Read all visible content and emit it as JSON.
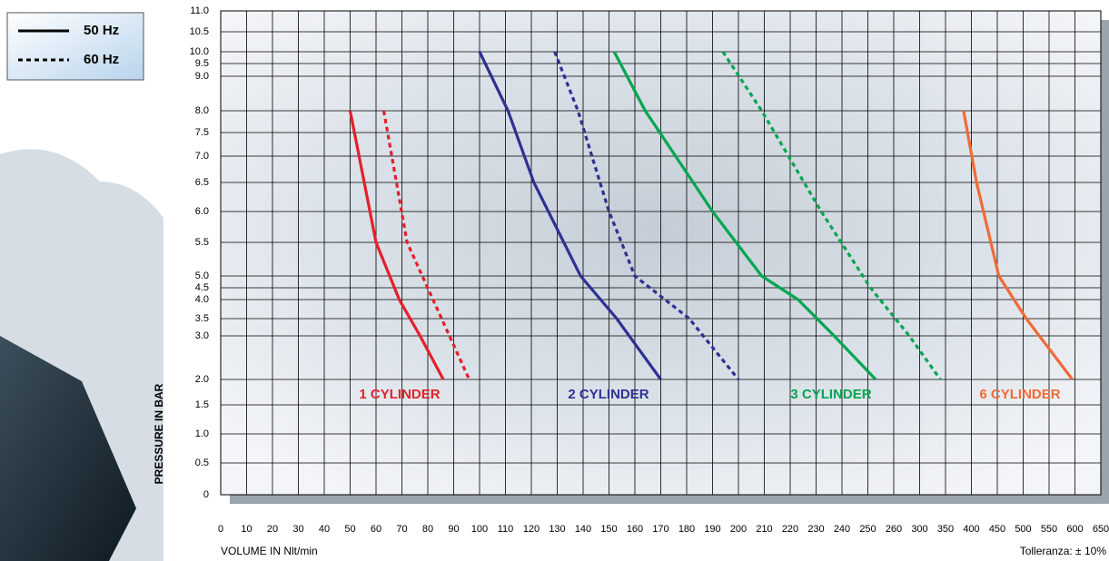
{
  "chart_data": {
    "type": "line",
    "ylabel": "PRESSURE IN BAR",
    "xlabel": "VOLUME IN Nlt/min",
    "note": "Tolleranza: ± 10%",
    "legend": [
      {
        "label": "50 Hz",
        "dash": "solid"
      },
      {
        "label": "60 Hz",
        "dash": "dashed"
      }
    ],
    "xticks": [
      0,
      10,
      20,
      30,
      40,
      50,
      60,
      70,
      80,
      90,
      100,
      110,
      120,
      130,
      140,
      150,
      160,
      170,
      180,
      190,
      200,
      210,
      220,
      230,
      240,
      250,
      260,
      300,
      350,
      400,
      450,
      500,
      550,
      600,
      650
    ],
    "xlim": [
      0,
      650
    ],
    "yticks": [
      0,
      0.5,
      {
        "value": 1,
        "label": "1.0"
      },
      1.5,
      {
        "value": 2,
        "label": "2.0"
      },
      {
        "value": 3,
        "label": "3.0"
      },
      3.5,
      {
        "value": 4,
        "label": "4.0"
      },
      4.5,
      {
        "value": 5,
        "label": "5.0"
      },
      5.5,
      {
        "value": 6,
        "label": "6.0"
      },
      6.5,
      {
        "value": 7,
        "label": "7.0"
      },
      7.5,
      {
        "value": 8,
        "label": "8.0"
      },
      {
        "value": 9,
        "label": "9.0"
      },
      9.5,
      {
        "value": 10,
        "label": "10.0"
      },
      10.5,
      {
        "value": 11,
        "label": "11.0"
      }
    ],
    "ylim": [
      0,
      11
    ],
    "grid": true,
    "curves": [
      {
        "name": "1 CYLINDER",
        "color": "#e4202a",
        "lines": [
          {
            "x": [
              50,
              60,
              69,
              77,
              86
            ],
            "values": [
              8,
              5.5,
              4,
              3,
              2
            ]
          },
          {
            "x": [
              63,
              72,
              82,
              96
            ],
            "values": [
              8,
              5.5,
              4,
              2
            ]
          }
        ]
      },
      {
        "name": "2 CYLINDER",
        "color": "#2e3192",
        "lines": [
          {
            "x": [
              100,
              111,
              121,
              139,
              153,
              170
            ],
            "values": [
              10,
              8,
              6.5,
              5,
              3.5,
              2
            ]
          },
          {
            "x": [
              129,
              138,
              150,
              160,
              181,
              200
            ],
            "values": [
              10,
              8,
              6,
              5,
              3.5,
              2
            ]
          }
        ]
      },
      {
        "name": "3 CYLINDER",
        "color": "#00a651",
        "lines": [
          {
            "x": [
              152,
              164,
              190,
              209,
              223,
              237,
              253
            ],
            "values": [
              10,
              8,
              6,
              5,
              4,
              3,
              2
            ]
          },
          {
            "x": [
              194,
              209,
              232,
              251,
              284,
              340
            ],
            "values": [
              10,
              8,
              6,
              4.5,
              3,
              2
            ]
          }
        ]
      },
      {
        "name": "6 CYLINDER",
        "color": "#f26a36",
        "lines": [
          {
            "x": [
              385,
              410,
              453,
              506,
              595
            ],
            "values": [
              8,
              6.5,
              5,
              3.5,
              2
            ]
          }
        ]
      }
    ]
  }
}
